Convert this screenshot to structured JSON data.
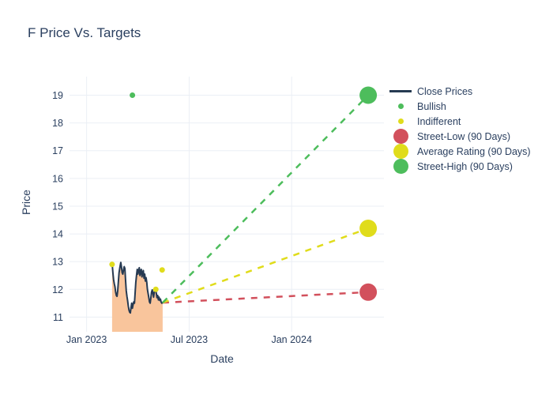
{
  "chart_data": {
    "type": "line+scatter",
    "title": "F Price Vs. Targets",
    "xlabel": "Date",
    "ylabel": "Price",
    "grid": true,
    "legend_position": "right-top",
    "x_axis": {
      "unit": "months since Jan 2023",
      "range_months": [
        -1.0,
        17.4
      ],
      "ticks": [
        {
          "label": "Jan 2023",
          "m": 0
        },
        {
          "label": "Jul 2023",
          "m": 6
        },
        {
          "label": "Jan 2024",
          "m": 12
        }
      ]
    },
    "y_axis": {
      "range": [
        10.47,
        19.67
      ],
      "ticks": [
        11,
        12,
        13,
        14,
        15,
        16,
        17,
        18,
        19
      ]
    },
    "colors": {
      "close_line": "#263a52",
      "close_fill": "#f9c59c",
      "bullish": "#4dbd5c",
      "indifferent": "#e0dc1b",
      "street_low": "#d2505c",
      "average_rating": "#e0dc1b",
      "street_high": "#4dbd5c",
      "gridline": "#ebeff5",
      "text": "#2a3f5f"
    },
    "series": {
      "close_prices": {
        "name": "Close Prices",
        "points": [
          [
            1.49,
            12.95
          ],
          [
            1.54,
            12.6
          ],
          [
            1.58,
            12.35
          ],
          [
            1.62,
            12.2
          ],
          [
            1.66,
            12.1
          ],
          [
            1.7,
            11.9
          ],
          [
            1.74,
            11.78
          ],
          [
            1.78,
            11.75
          ],
          [
            1.82,
            11.95
          ],
          [
            1.86,
            12.3
          ],
          [
            1.9,
            12.6
          ],
          [
            1.95,
            12.8
          ],
          [
            2.0,
            12.97
          ],
          [
            2.04,
            12.8
          ],
          [
            2.08,
            12.6
          ],
          [
            2.12,
            12.55
          ],
          [
            2.16,
            12.7
          ],
          [
            2.2,
            12.82
          ],
          [
            2.24,
            12.75
          ],
          [
            2.28,
            12.35
          ],
          [
            2.32,
            11.95
          ],
          [
            2.36,
            11.75
          ],
          [
            2.4,
            11.6
          ],
          [
            2.44,
            11.4
          ],
          [
            2.48,
            11.25
          ],
          [
            2.52,
            11.18
          ],
          [
            2.56,
            11.15
          ],
          [
            2.6,
            11.35
          ],
          [
            2.64,
            11.5
          ],
          [
            2.68,
            11.32
          ],
          [
            2.72,
            11.45
          ],
          [
            2.76,
            11.55
          ],
          [
            2.8,
            11.5
          ],
          [
            2.84,
            11.9
          ],
          [
            2.88,
            12.25
          ],
          [
            2.92,
            12.5
          ],
          [
            2.96,
            12.72
          ],
          [
            3.0,
            12.55
          ],
          [
            3.04,
            12.68
          ],
          [
            3.08,
            12.78
          ],
          [
            3.12,
            12.5
          ],
          [
            3.16,
            12.65
          ],
          [
            3.2,
            12.72
          ],
          [
            3.24,
            12.45
          ],
          [
            3.28,
            12.6
          ],
          [
            3.32,
            12.68
          ],
          [
            3.36,
            12.4
          ],
          [
            3.4,
            12.55
          ],
          [
            3.44,
            12.3
          ],
          [
            3.48,
            12.42
          ],
          [
            3.52,
            12.25
          ],
          [
            3.56,
            12.0
          ],
          [
            3.6,
            11.85
          ],
          [
            3.64,
            11.7
          ],
          [
            3.68,
            11.55
          ],
          [
            3.72,
            11.5
          ],
          [
            3.76,
            11.7
          ],
          [
            3.8,
            11.9
          ],
          [
            3.84,
            11.98
          ],
          [
            3.88,
            11.85
          ],
          [
            3.92,
            11.72
          ],
          [
            3.96,
            11.9
          ],
          [
            4.0,
            11.98
          ],
          [
            4.04,
            12.0
          ],
          [
            4.08,
            11.85
          ],
          [
            4.12,
            11.7
          ],
          [
            4.16,
            11.78
          ],
          [
            4.2,
            11.62
          ],
          [
            4.24,
            11.72
          ],
          [
            4.28,
            11.6
          ],
          [
            4.32,
            11.65
          ],
          [
            4.36,
            11.55
          ],
          [
            4.4,
            11.5
          ],
          [
            4.45,
            11.52
          ]
        ]
      },
      "bullish_markers": {
        "name": "Bullish",
        "points": [
          [
            2.68,
            19.0
          ]
        ]
      },
      "indifferent_markers": {
        "name": "Indifferent",
        "points": [
          [
            1.49,
            12.9
          ],
          [
            4.05,
            12.0
          ],
          [
            4.42,
            12.7
          ]
        ]
      },
      "targets_90_days": {
        "projection_start": [
          4.45,
          11.52
        ],
        "projection_x_months": 16.48,
        "items": [
          {
            "key": "street-low",
            "name": "Street-Low (90 Days)",
            "value": 11.9,
            "color_key": "street_low"
          },
          {
            "key": "average-rating",
            "name": "Average Rating (90 Days)",
            "value": 14.2,
            "color_key": "average_rating"
          },
          {
            "key": "street-high",
            "name": "Street-High (90 Days)",
            "value": 19.0,
            "color_key": "street_high"
          }
        ]
      }
    },
    "legend": [
      {
        "key": "close-prices",
        "label": "Close Prices",
        "swatch": "line",
        "color_key": "close_line"
      },
      {
        "key": "bullish",
        "label": "Bullish",
        "swatch": "dot-small",
        "color_key": "bullish"
      },
      {
        "key": "indifferent",
        "label": "Indifferent",
        "swatch": "dot-small",
        "color_key": "indifferent"
      },
      {
        "key": "street-low",
        "label": "Street-Low (90 Days)",
        "swatch": "dot-large",
        "color_key": "street_low"
      },
      {
        "key": "average-rating",
        "label": "Average Rating (90 Days)",
        "swatch": "dot-large",
        "color_key": "average_rating"
      },
      {
        "key": "street-high",
        "label": "Street-High (90 Days)",
        "swatch": "dot-large",
        "color_key": "street_high"
      }
    ]
  },
  "layout_text": {
    "title": "F Price Vs. Targets",
    "xlabel": "Date",
    "ylabel": "Price"
  }
}
